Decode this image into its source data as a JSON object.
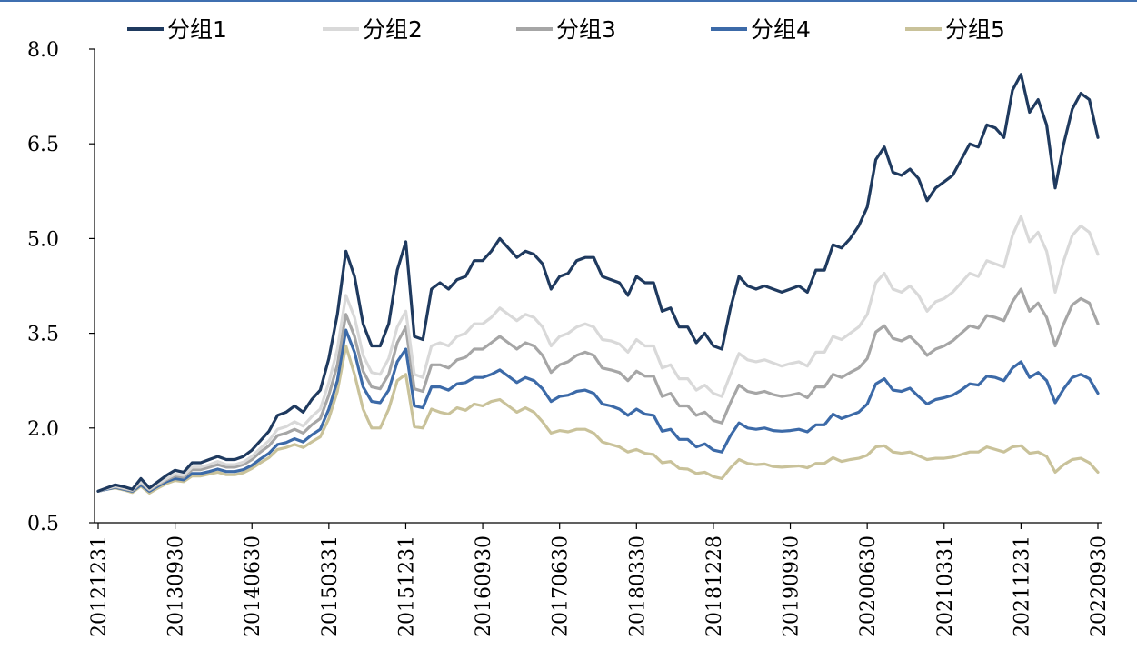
{
  "chart_data": {
    "type": "line",
    "title": "",
    "xlabel": "",
    "ylabel": "",
    "ylim": [
      0.5,
      8.0
    ],
    "yticks": [
      "8.0",
      "6.5",
      "5.0",
      "3.5",
      "2.0",
      "0.5"
    ],
    "ytick_values": [
      8.0,
      6.5,
      5.0,
      3.5,
      2.0,
      0.5
    ],
    "xtick_labels": [
      "20121231",
      "20130930",
      "20140630",
      "20150331",
      "20151231",
      "20160930",
      "20170630",
      "20180330",
      "20181228",
      "20190930",
      "20200630",
      "20210331",
      "20211231",
      "20220930"
    ],
    "xtick_index": [
      0,
      9,
      18,
      27,
      36,
      45,
      54,
      63,
      72,
      81,
      90,
      99,
      108,
      117
    ],
    "legend_position": "top",
    "series": [
      {
        "name": "分组1",
        "color": "#1f3a5f",
        "values": [
          1.0,
          1.05,
          1.1,
          1.07,
          1.03,
          1.2,
          1.05,
          1.15,
          1.25,
          1.33,
          1.3,
          1.45,
          1.45,
          1.5,
          1.55,
          1.5,
          1.5,
          1.55,
          1.65,
          1.8,
          1.95,
          2.2,
          2.25,
          2.35,
          2.25,
          2.45,
          2.6,
          3.1,
          3.8,
          4.8,
          4.4,
          3.65,
          3.3,
          3.3,
          3.65,
          4.5,
          4.95,
          3.45,
          3.4,
          4.2,
          4.3,
          4.2,
          4.35,
          4.4,
          4.65,
          4.65,
          4.8,
          5.0,
          4.85,
          4.7,
          4.8,
          4.75,
          4.6,
          4.2,
          4.4,
          4.45,
          4.65,
          4.7,
          4.7,
          4.4,
          4.35,
          4.3,
          4.1,
          4.4,
          4.3,
          4.3,
          3.85,
          3.9,
          3.6,
          3.6,
          3.35,
          3.5,
          3.3,
          3.25,
          3.9,
          4.4,
          4.25,
          4.2,
          4.25,
          4.2,
          4.15,
          4.2,
          4.25,
          4.15,
          4.5,
          4.5,
          4.9,
          4.85,
          5.0,
          5.2,
          5.5,
          6.25,
          6.45,
          6.05,
          6.0,
          6.1,
          5.95,
          5.6,
          5.8,
          5.9,
          6.0,
          6.25,
          6.5,
          6.45,
          6.8,
          6.75,
          6.6,
          7.35,
          7.6,
          7.0,
          7.2,
          6.8,
          5.8,
          6.5,
          7.05,
          7.3,
          7.2,
          6.6
        ]
      },
      {
        "name": "分组2",
        "color": "#d9d9d9",
        "values": [
          1.0,
          1.04,
          1.08,
          1.05,
          1.02,
          1.15,
          1.03,
          1.12,
          1.2,
          1.27,
          1.25,
          1.38,
          1.38,
          1.42,
          1.47,
          1.42,
          1.42,
          1.46,
          1.55,
          1.68,
          1.8,
          1.98,
          2.02,
          2.1,
          2.03,
          2.18,
          2.3,
          2.72,
          3.25,
          4.1,
          3.75,
          3.15,
          2.88,
          2.85,
          3.1,
          3.6,
          3.85,
          2.85,
          2.8,
          3.3,
          3.35,
          3.3,
          3.45,
          3.5,
          3.65,
          3.65,
          3.75,
          3.9,
          3.8,
          3.7,
          3.8,
          3.75,
          3.6,
          3.3,
          3.45,
          3.5,
          3.6,
          3.65,
          3.6,
          3.4,
          3.38,
          3.33,
          3.2,
          3.4,
          3.3,
          3.3,
          2.95,
          3.0,
          2.78,
          2.78,
          2.6,
          2.68,
          2.55,
          2.5,
          2.85,
          3.18,
          3.08,
          3.05,
          3.08,
          3.03,
          2.98,
          3.02,
          3.05,
          2.98,
          3.2,
          3.2,
          3.45,
          3.4,
          3.5,
          3.6,
          3.8,
          4.3,
          4.45,
          4.2,
          4.15,
          4.25,
          4.1,
          3.85,
          4.0,
          4.05,
          4.15,
          4.3,
          4.45,
          4.4,
          4.65,
          4.6,
          4.55,
          5.05,
          5.35,
          4.95,
          5.1,
          4.8,
          4.15,
          4.65,
          5.05,
          5.2,
          5.1,
          4.75
        ]
      },
      {
        "name": "分组3",
        "color": "#a6a6a6",
        "values": [
          1.0,
          1.04,
          1.07,
          1.04,
          1.01,
          1.13,
          1.02,
          1.1,
          1.18,
          1.24,
          1.22,
          1.34,
          1.34,
          1.38,
          1.42,
          1.38,
          1.38,
          1.42,
          1.5,
          1.62,
          1.72,
          1.88,
          1.92,
          1.98,
          1.92,
          2.05,
          2.15,
          2.52,
          3.0,
          3.8,
          3.45,
          2.9,
          2.65,
          2.62,
          2.85,
          3.35,
          3.6,
          2.62,
          2.58,
          3.0,
          3.0,
          2.95,
          3.08,
          3.12,
          3.25,
          3.25,
          3.35,
          3.45,
          3.35,
          3.25,
          3.35,
          3.3,
          3.15,
          2.88,
          3.0,
          3.05,
          3.15,
          3.2,
          3.15,
          2.95,
          2.92,
          2.88,
          2.75,
          2.9,
          2.82,
          2.82,
          2.5,
          2.55,
          2.35,
          2.35,
          2.2,
          2.25,
          2.12,
          2.08,
          2.4,
          2.68,
          2.58,
          2.55,
          2.58,
          2.53,
          2.5,
          2.52,
          2.55,
          2.48,
          2.65,
          2.65,
          2.85,
          2.8,
          2.88,
          2.95,
          3.1,
          3.52,
          3.62,
          3.42,
          3.38,
          3.45,
          3.32,
          3.15,
          3.25,
          3.3,
          3.38,
          3.5,
          3.62,
          3.58,
          3.78,
          3.75,
          3.7,
          4.0,
          4.2,
          3.85,
          3.98,
          3.75,
          3.3,
          3.65,
          3.95,
          4.05,
          3.98,
          3.65
        ]
      },
      {
        "name": "分组4",
        "color": "#3c6aa8",
        "values": [
          1.0,
          1.03,
          1.06,
          1.03,
          1.0,
          1.1,
          1.0,
          1.08,
          1.15,
          1.2,
          1.18,
          1.28,
          1.28,
          1.31,
          1.35,
          1.31,
          1.31,
          1.34,
          1.41,
          1.51,
          1.6,
          1.74,
          1.77,
          1.83,
          1.78,
          1.89,
          1.98,
          2.3,
          2.75,
          3.55,
          3.2,
          2.65,
          2.42,
          2.4,
          2.6,
          3.05,
          3.25,
          2.35,
          2.32,
          2.65,
          2.65,
          2.6,
          2.7,
          2.72,
          2.8,
          2.8,
          2.85,
          2.92,
          2.82,
          2.72,
          2.8,
          2.75,
          2.62,
          2.42,
          2.5,
          2.52,
          2.58,
          2.6,
          2.55,
          2.38,
          2.35,
          2.3,
          2.2,
          2.3,
          2.22,
          2.2,
          1.95,
          1.98,
          1.82,
          1.82,
          1.7,
          1.75,
          1.65,
          1.62,
          1.88,
          2.08,
          2.0,
          1.98,
          2.0,
          1.96,
          1.95,
          1.96,
          1.98,
          1.94,
          2.05,
          2.05,
          2.22,
          2.15,
          2.2,
          2.25,
          2.38,
          2.7,
          2.78,
          2.6,
          2.58,
          2.63,
          2.5,
          2.38,
          2.45,
          2.48,
          2.52,
          2.6,
          2.7,
          2.68,
          2.82,
          2.8,
          2.75,
          2.95,
          3.05,
          2.8,
          2.88,
          2.75,
          2.4,
          2.62,
          2.8,
          2.85,
          2.78,
          2.55
        ]
      },
      {
        "name": "分组5",
        "color": "#c9c29a",
        "values": [
          1.0,
          1.03,
          1.05,
          1.02,
          0.98,
          1.08,
          0.97,
          1.05,
          1.12,
          1.17,
          1.15,
          1.24,
          1.24,
          1.27,
          1.3,
          1.26,
          1.26,
          1.29,
          1.36,
          1.45,
          1.53,
          1.66,
          1.69,
          1.74,
          1.69,
          1.78,
          1.86,
          2.15,
          2.58,
          3.3,
          2.85,
          2.3,
          2.0,
          2.0,
          2.3,
          2.75,
          2.85,
          2.02,
          2.0,
          2.3,
          2.25,
          2.22,
          2.32,
          2.28,
          2.38,
          2.35,
          2.42,
          2.45,
          2.35,
          2.25,
          2.32,
          2.25,
          2.1,
          1.92,
          1.96,
          1.94,
          1.98,
          1.98,
          1.92,
          1.78,
          1.74,
          1.7,
          1.62,
          1.66,
          1.6,
          1.58,
          1.45,
          1.47,
          1.36,
          1.35,
          1.28,
          1.3,
          1.23,
          1.2,
          1.37,
          1.5,
          1.44,
          1.42,
          1.43,
          1.39,
          1.38,
          1.39,
          1.4,
          1.37,
          1.44,
          1.44,
          1.53,
          1.47,
          1.5,
          1.52,
          1.57,
          1.7,
          1.72,
          1.62,
          1.6,
          1.62,
          1.56,
          1.5,
          1.52,
          1.52,
          1.54,
          1.58,
          1.62,
          1.62,
          1.7,
          1.66,
          1.62,
          1.7,
          1.72,
          1.6,
          1.62,
          1.55,
          1.3,
          1.42,
          1.5,
          1.52,
          1.45,
          1.3
        ]
      }
    ]
  }
}
